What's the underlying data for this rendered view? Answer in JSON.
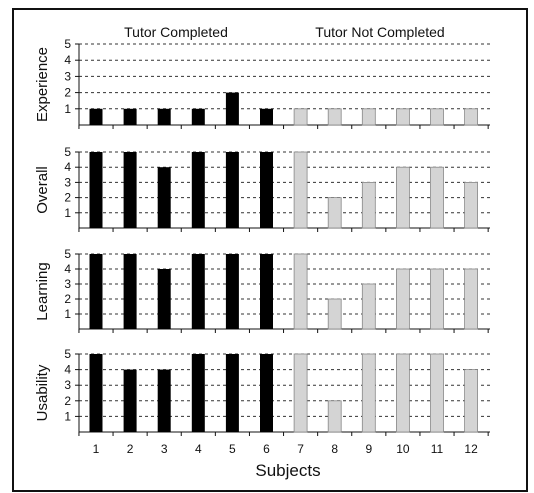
{
  "chart_data": {
    "type": "bar",
    "layout": "small-multiples-stacked",
    "xlabel": "Subjects",
    "categories": [
      "1",
      "2",
      "3",
      "4",
      "5",
      "6",
      "7",
      "8",
      "9",
      "10",
      "11",
      "12"
    ],
    "group_headers": [
      {
        "label": "Tutor Completed",
        "subjects": [
          "1",
          "2",
          "3",
          "4",
          "5",
          "6"
        ]
      },
      {
        "label": "Tutor Not Completed",
        "subjects": [
          "7",
          "8",
          "9",
          "10",
          "11",
          "12"
        ]
      }
    ],
    "ylim": [
      0,
      5
    ],
    "yticks": [
      1,
      2,
      3,
      4,
      5
    ],
    "grid": "dashed-horizontal",
    "colors": {
      "tutor_completed": "#000000",
      "tutor_not_completed": "#d4d4d4"
    },
    "panels": [
      {
        "ylabel": "Experience",
        "values": [
          1,
          1,
          1,
          1,
          2,
          1,
          1,
          1,
          1,
          1,
          1,
          1
        ]
      },
      {
        "ylabel": "Overall",
        "values": [
          5,
          5,
          4,
          5,
          5,
          5,
          5,
          2,
          3,
          4,
          4,
          3
        ]
      },
      {
        "ylabel": "Learning",
        "values": [
          5,
          5,
          4,
          5,
          5,
          5,
          5,
          2,
          3,
          4,
          4,
          4
        ]
      },
      {
        "ylabel": "Usability",
        "values": [
          5,
          4,
          4,
          5,
          5,
          5,
          5,
          2,
          5,
          5,
          5,
          4
        ]
      }
    ]
  }
}
